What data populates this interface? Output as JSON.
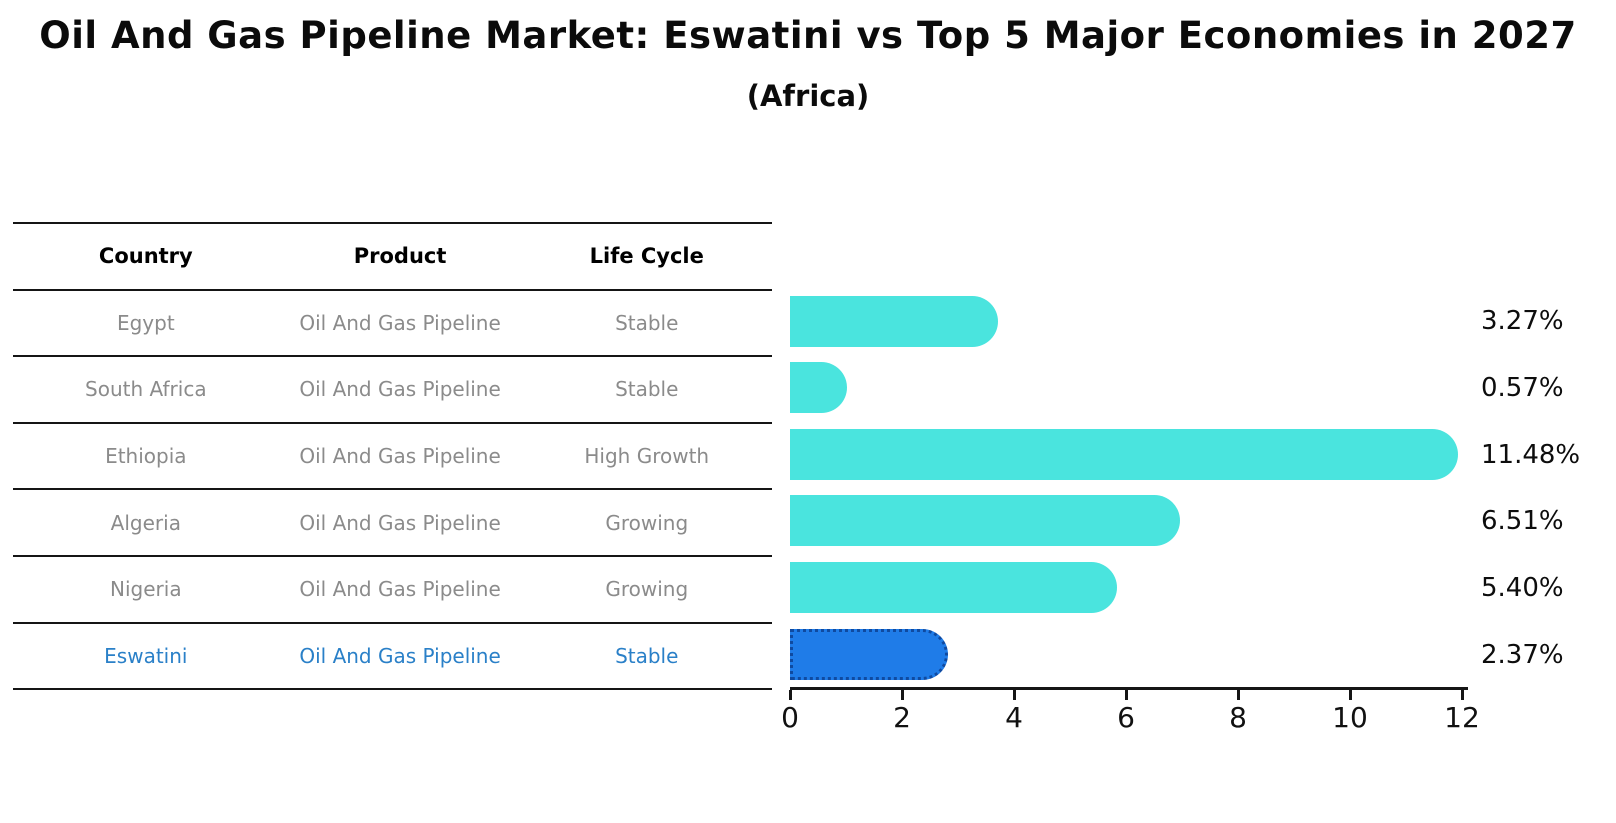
{
  "title": "Oil And Gas Pipeline Market: Eswatini vs Top 5 Major Economies in 2027",
  "subtitle": "(Africa)",
  "table": {
    "headers": [
      "Country",
      "Product",
      "Life Cycle"
    ],
    "rows": [
      {
        "country": "Egypt",
        "product": "Oil And Gas Pipeline",
        "life_cycle": "Stable",
        "highlighted": false
      },
      {
        "country": "South Africa",
        "product": "Oil And Gas Pipeline",
        "life_cycle": "Stable",
        "highlighted": false
      },
      {
        "country": "Ethiopia",
        "product": "Oil And Gas Pipeline",
        "life_cycle": "High Growth",
        "highlighted": false
      },
      {
        "country": "Algeria",
        "product": "Oil And Gas Pipeline",
        "life_cycle": "Growing",
        "highlighted": false
      },
      {
        "country": "Nigeria",
        "product": "Oil And Gas Pipeline",
        "life_cycle": "Growing",
        "highlighted": false
      },
      {
        "country": "Eswatini",
        "product": "Oil And Gas Pipeline",
        "life_cycle": "Stable",
        "highlighted": true
      }
    ]
  },
  "chart_data": {
    "type": "bar",
    "orientation": "horizontal",
    "title": "Oil And Gas Pipeline Market: Eswatini vs Top 5 Major Economies in 2027",
    "subtitle": "(Africa)",
    "categories": [
      "Egypt",
      "South Africa",
      "Ethiopia",
      "Algeria",
      "Nigeria",
      "Eswatini"
    ],
    "values": [
      3.27,
      0.57,
      11.48,
      6.51,
      5.4,
      2.37
    ],
    "value_labels": [
      "3.27%",
      "0.57%",
      "11.48%",
      "6.51%",
      "5.40%",
      "2.37%"
    ],
    "highlight_index": 5,
    "xlim": [
      0,
      12
    ],
    "x_ticks": [
      "0",
      "2",
      "4",
      "6",
      "8",
      "10",
      "12"
    ],
    "grid": false,
    "legend": "none",
    "bar_color": "#4ae4de",
    "highlight_bar_color": "#1f7ce8",
    "highlight_text_color": "#2a80c8"
  },
  "colors": {
    "background": "#ffffff",
    "bar": "#4ae4de",
    "highlight_bar": "#1f7ce8",
    "highlight_border": "#0f4aa0",
    "table_text": "#8b8b8b",
    "header_text": "#000000",
    "highlight_text": "#2a80c8",
    "axis": "#151515"
  }
}
